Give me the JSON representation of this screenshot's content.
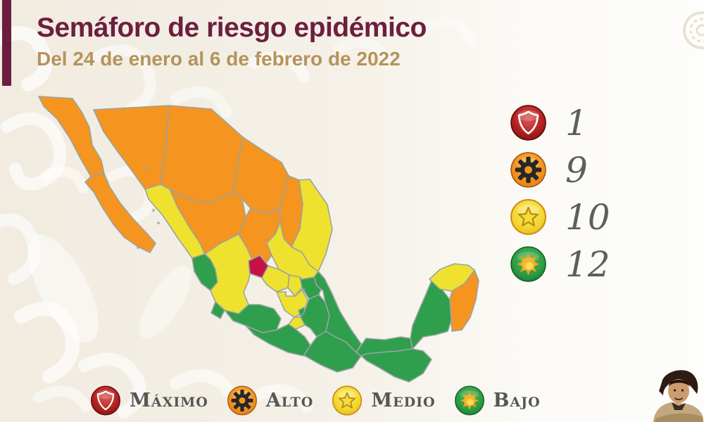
{
  "header": {
    "title": "Semáforo de riesgo epidémico",
    "subtitle": "Del 24 de enero al 6 de febrero de 2022"
  },
  "legend_right": [
    {
      "level": "maximo",
      "icon": "shield-icon",
      "count": "1"
    },
    {
      "level": "alto",
      "icon": "gear-icon",
      "count": "9"
    },
    {
      "level": "medio",
      "icon": "star-icon",
      "count": "10"
    },
    {
      "level": "bajo",
      "icon": "sun-icon",
      "count": "12"
    }
  ],
  "legend_bottom": [
    {
      "level": "maximo",
      "icon": "shield-icon",
      "label": "Máximo"
    },
    {
      "level": "alto",
      "icon": "gear-icon",
      "label": "Alto"
    },
    {
      "level": "medio",
      "icon": "star-icon",
      "label": "Medio"
    },
    {
      "level": "bajo",
      "icon": "sun-icon",
      "label": "Bajo"
    }
  ],
  "legend_colors": {
    "maximo": "#c51245",
    "alto": "#f5941f",
    "medio": "#efe22f",
    "bajo": "#2f9e4d"
  },
  "map": {
    "border_color": "#9aa4a0",
    "states": [
      {
        "id": "son",
        "name": "Sonora",
        "level": "alto"
      },
      {
        "id": "chh",
        "name": "Chihuahua",
        "level": "alto"
      },
      {
        "id": "coa",
        "name": "Coahuila",
        "level": "alto"
      },
      {
        "id": "nl",
        "name": "Nuevo León",
        "level": "alto"
      },
      {
        "id": "tam",
        "name": "Tamaulipas",
        "level": "medio"
      },
      {
        "id": "dur",
        "name": "Durango",
        "level": "alto"
      },
      {
        "id": "sin",
        "name": "Sinaloa",
        "level": "medio"
      },
      {
        "id": "zac",
        "name": "Zacatecas",
        "level": "alto"
      },
      {
        "id": "slp",
        "name": "San Luis Potosí",
        "level": "medio"
      },
      {
        "id": "bc",
        "name": "Baja California",
        "level": "alto"
      },
      {
        "id": "bcs",
        "name": "Baja California Sur",
        "level": "alto"
      },
      {
        "id": "nay",
        "name": "Nayarit",
        "level": "bajo"
      },
      {
        "id": "jal",
        "name": "Jalisco",
        "level": "medio"
      },
      {
        "id": "col",
        "name": "Colima",
        "level": "bajo"
      },
      {
        "id": "mic",
        "name": "Michoacán",
        "level": "bajo"
      },
      {
        "id": "gto",
        "name": "Guanajuato",
        "level": "medio"
      },
      {
        "id": "qro",
        "name": "Querétaro",
        "level": "medio"
      },
      {
        "id": "hgo",
        "name": "Hidalgo",
        "level": "bajo"
      },
      {
        "id": "mex",
        "name": "Estado de México",
        "level": "medio"
      },
      {
        "id": "cdmx",
        "name": "Ciudad de México",
        "level": "bajo"
      },
      {
        "id": "mor",
        "name": "Morelos",
        "level": "medio"
      },
      {
        "id": "tlx",
        "name": "Tlaxcala",
        "level": "medio"
      },
      {
        "id": "pue",
        "name": "Puebla",
        "level": "bajo"
      },
      {
        "id": "ver",
        "name": "Veracruz",
        "level": "bajo"
      },
      {
        "id": "gue",
        "name": "Guerrero",
        "level": "bajo"
      },
      {
        "id": "oax",
        "name": "Oaxaca",
        "level": "bajo"
      },
      {
        "id": "tab",
        "name": "Tabasco",
        "level": "bajo"
      },
      {
        "id": "chp",
        "name": "Chiapas",
        "level": "bajo"
      },
      {
        "id": "cam",
        "name": "Campeche",
        "level": "bajo"
      },
      {
        "id": "yuc",
        "name": "Yucatán",
        "level": "medio"
      },
      {
        "id": "qr",
        "name": "Quintana Roo",
        "level": "alto"
      },
      {
        "id": "ags",
        "name": "Aguascalientes",
        "level": "maximo"
      }
    ]
  }
}
